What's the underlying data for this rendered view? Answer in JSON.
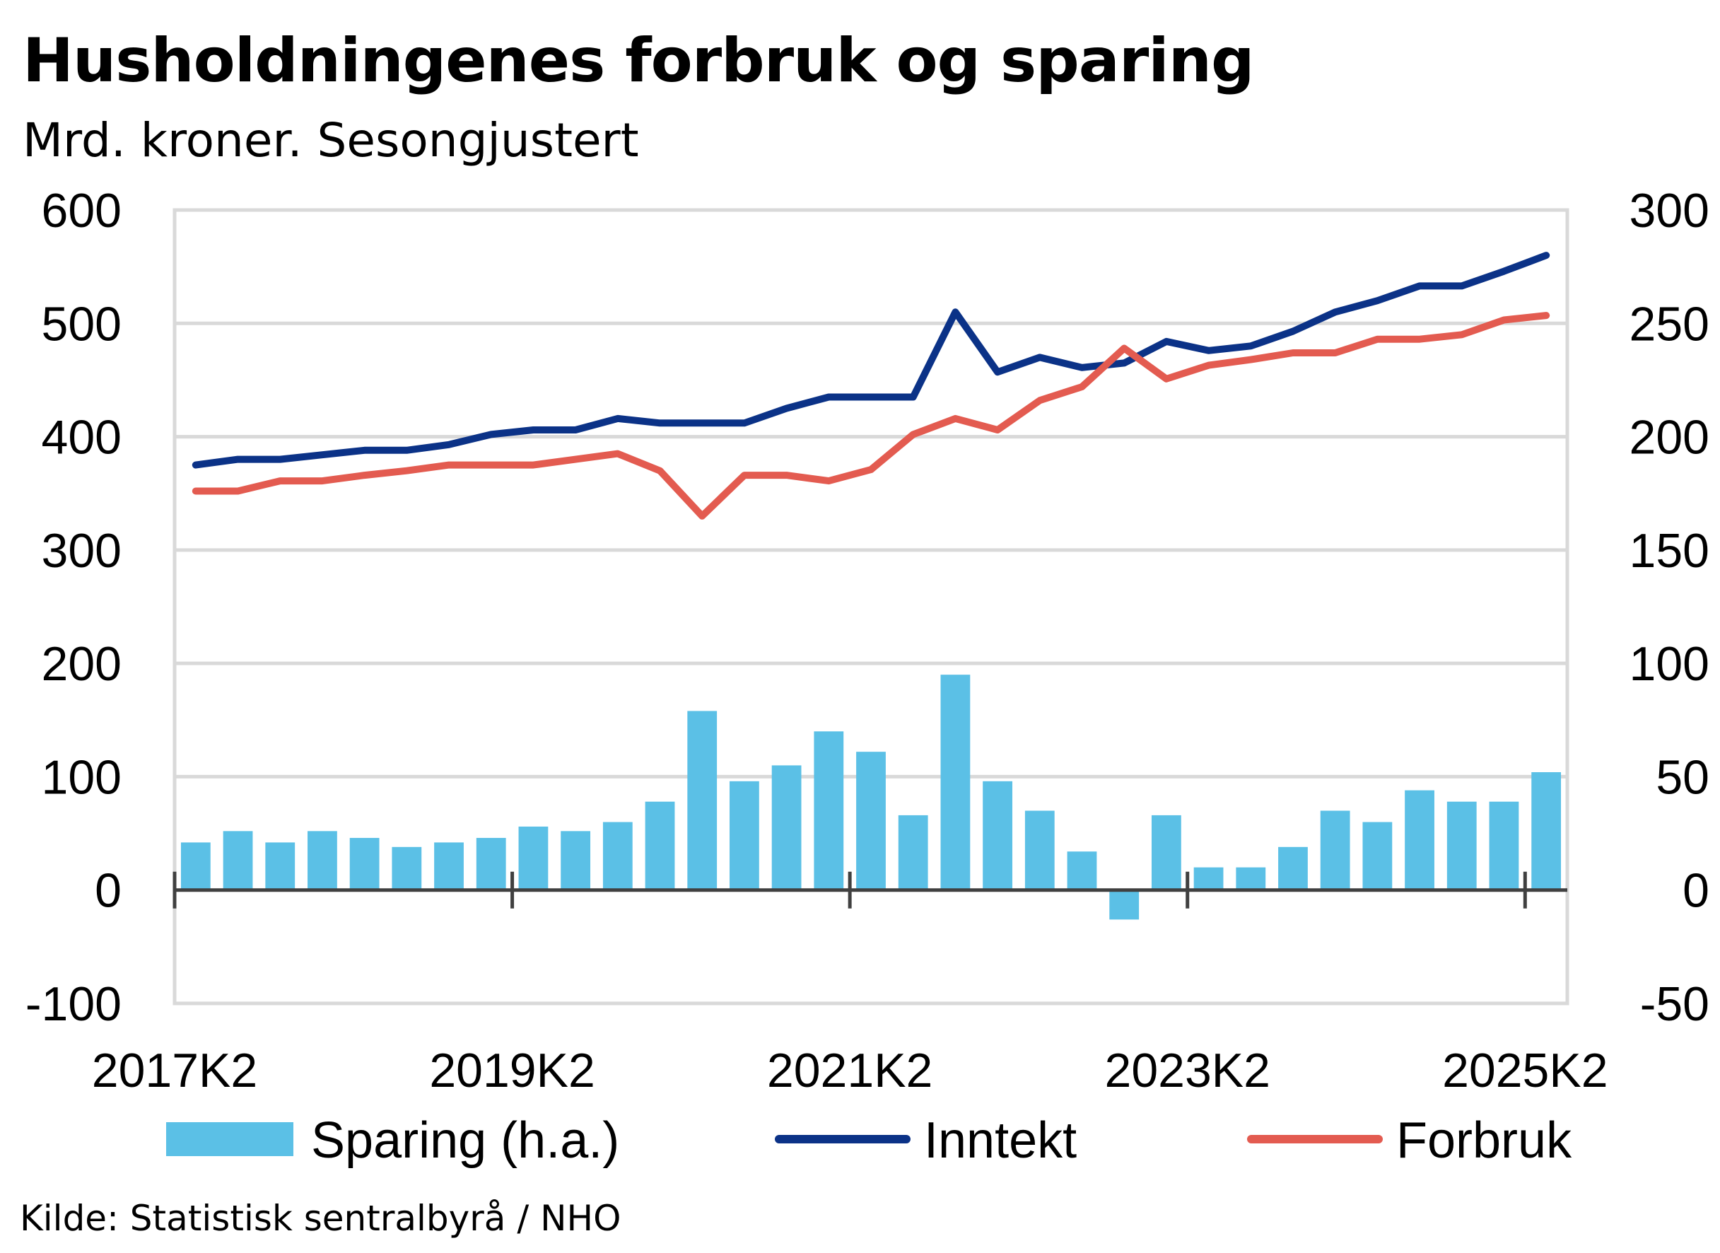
{
  "title": "Husholdningenes forbruk og sparing",
  "subtitle": "Mrd. kroner. Sesongjustert",
  "source": "Kilde: Statistisk sentralbyrå / NHO",
  "chart_data": {
    "type": "bar",
    "grid": true,
    "legend_position": "bottom",
    "x_tick_labels": [
      "2017K2",
      "2019K2",
      "2021K2",
      "2023K2",
      "2025K2"
    ],
    "y_left_ticks": [
      "600",
      "500",
      "400",
      "300",
      "200",
      "100",
      "0",
      "-100"
    ],
    "y_right_ticks": [
      "300",
      "250",
      "200",
      "150",
      "100",
      "50",
      "0",
      "-50"
    ],
    "ylim_left": [
      -100,
      600
    ],
    "ylim_right": [
      -50,
      300
    ],
    "categories": [
      "2017K2",
      "2017K3",
      "2017K4",
      "2018K1",
      "2018K2",
      "2018K3",
      "2018K4",
      "2019K1",
      "2019K2",
      "2019K3",
      "2019K4",
      "2020K1",
      "2020K2",
      "2020K3",
      "2020K4",
      "2021K1",
      "2021K2",
      "2021K3",
      "2021K4",
      "2022K1",
      "2022K2",
      "2022K3",
      "2022K4",
      "2023K1",
      "2023K2",
      "2023K3",
      "2023K4",
      "2024K1",
      "2024K2",
      "2024K3",
      "2024K4",
      "2025K1",
      "2025K2"
    ],
    "series": [
      {
        "name": "Sparing (h.a.)",
        "type": "bar",
        "axis": "right",
        "color": "#5BC0E6",
        "values": [
          21,
          26,
          21,
          26,
          23,
          19,
          21,
          23,
          28,
          26,
          30,
          39,
          79,
          48,
          55,
          70,
          61,
          33,
          95,
          48,
          35,
          17,
          -13,
          33,
          10,
          10,
          19,
          35,
          30,
          44,
          39,
          39,
          52
        ]
      },
      {
        "name": "Inntekt",
        "type": "line",
        "axis": "left",
        "color": "#0B3287",
        "values": [
          375,
          380,
          380,
          384,
          388,
          388,
          393,
          402,
          406,
          406,
          416,
          412,
          412,
          412,
          425,
          435,
          435,
          435,
          510,
          457,
          470,
          461,
          465,
          484,
          476,
          480,
          493,
          510,
          520,
          533,
          533,
          546,
          560
        ]
      },
      {
        "name": "Forbruk",
        "type": "line",
        "axis": "left",
        "color": "#E35B50",
        "values": [
          352,
          352,
          361,
          361,
          366,
          370,
          375,
          375,
          375,
          380,
          385,
          370,
          330,
          366,
          366,
          361,
          371,
          402,
          416,
          406,
          432,
          444,
          478,
          451,
          463,
          468,
          474,
          474,
          486,
          486,
          490,
          503,
          507
        ]
      }
    ]
  }
}
